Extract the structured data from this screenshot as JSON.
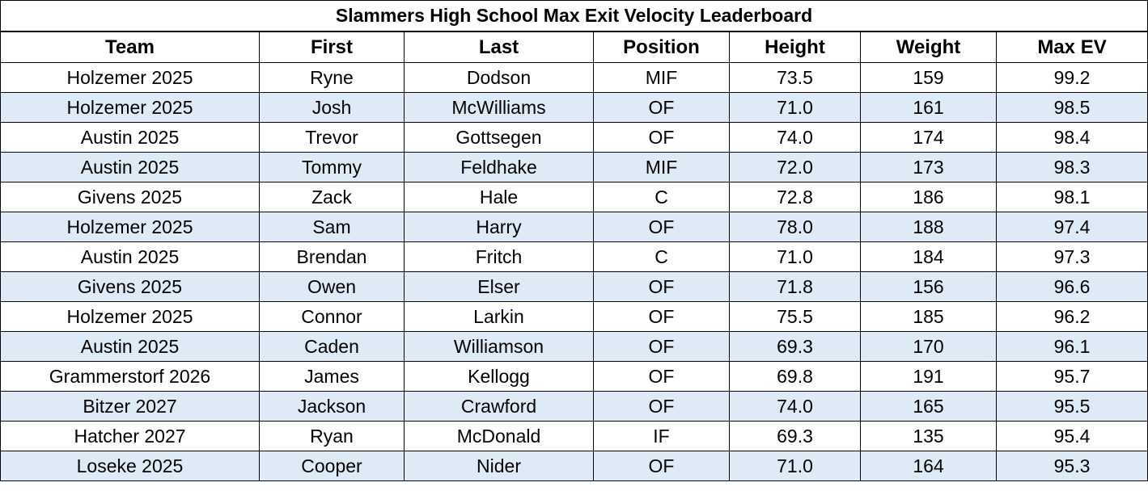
{
  "header": {
    "title": "Slammers High School Max Exit Velocity Leaderboard"
  },
  "table": {
    "columns": [
      "Team",
      "First",
      "Last",
      "Position",
      "Height",
      "Weight",
      "Max EV"
    ],
    "rows": [
      [
        "Holzemer 2025",
        "Ryne",
        "Dodson",
        "MIF",
        "73.5",
        "159",
        "99.2"
      ],
      [
        "Holzemer 2025",
        "Josh",
        "McWilliams",
        "OF",
        "71.0",
        "161",
        "98.5"
      ],
      [
        "Austin 2025",
        "Trevor",
        "Gottsegen",
        "OF",
        "74.0",
        "174",
        "98.4"
      ],
      [
        "Austin 2025",
        "Tommy",
        "Feldhake",
        "MIF",
        "72.0",
        "173",
        "98.3"
      ],
      [
        "Givens 2025",
        "Zack",
        "Hale",
        "C",
        "72.8",
        "186",
        "98.1"
      ],
      [
        "Holzemer 2025",
        "Sam",
        "Harry",
        "OF",
        "78.0",
        "188",
        "97.4"
      ],
      [
        "Austin 2025",
        "Brendan",
        "Fritch",
        "C",
        "71.0",
        "184",
        "97.3"
      ],
      [
        "Givens 2025",
        "Owen",
        "Elser",
        "OF",
        "71.8",
        "156",
        "96.6"
      ],
      [
        "Holzemer 2025",
        "Connor",
        "Larkin",
        "OF",
        "75.5",
        "185",
        "96.2"
      ],
      [
        "Austin 2025",
        "Caden",
        "Williamson",
        "OF",
        "69.3",
        "170",
        "96.1"
      ],
      [
        "Grammerstorf 2026",
        "James",
        "Kellogg",
        "OF",
        "69.8",
        "191",
        "95.7"
      ],
      [
        "Bitzer 2027",
        "Jackson",
        "Crawford",
        "OF",
        "74.0",
        "165",
        "95.5"
      ],
      [
        "Hatcher 2027",
        "Ryan",
        "McDonald",
        "IF",
        "69.3",
        "135",
        "95.4"
      ],
      [
        "Loseke 2025",
        "Cooper",
        "Nider",
        "OF",
        "71.0",
        "164",
        "95.3"
      ]
    ]
  }
}
